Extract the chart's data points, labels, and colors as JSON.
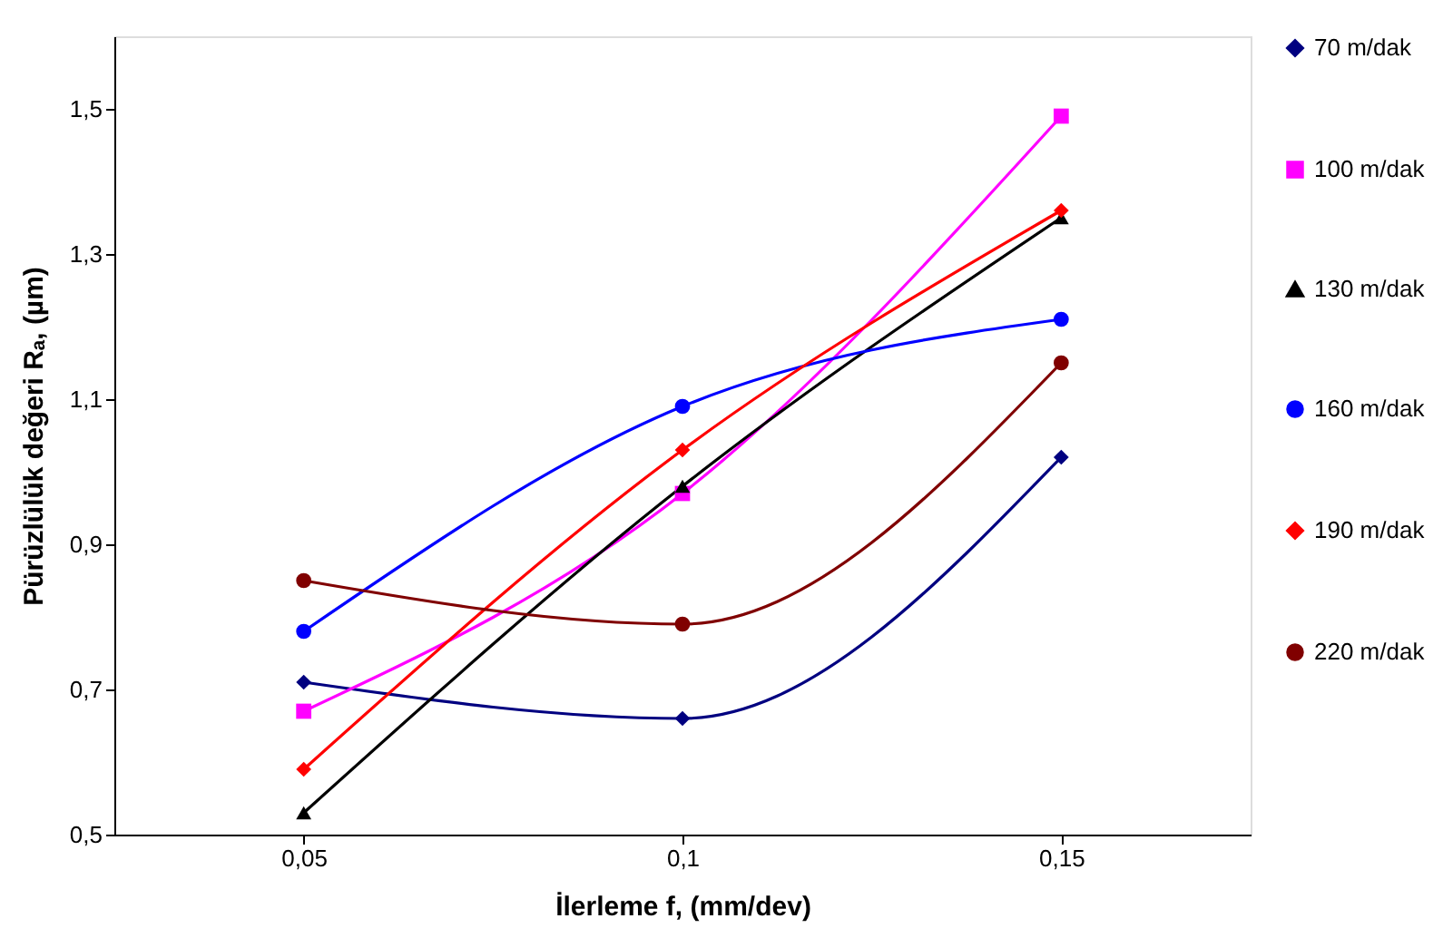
{
  "chart_data": {
    "type": "line",
    "xlabel": "İlerleme f, (mm/dev)",
    "ylabel": "Pürüzlülük değeri Rₐ, (µm)",
    "x": [
      0.05,
      0.1,
      0.15
    ],
    "series": [
      {
        "name": "70 m/dak",
        "color": "#000080",
        "marker": "diamond",
        "values": [
          0.71,
          0.66,
          1.02
        ]
      },
      {
        "name": "100 m/dak",
        "color": "#ff00ff",
        "marker": "square",
        "values": [
          0.67,
          0.97,
          1.49
        ]
      },
      {
        "name": "130 m/dak",
        "color": "#000000",
        "marker": "triangle",
        "values": [
          0.53,
          0.98,
          1.35
        ]
      },
      {
        "name": "160 m/dak",
        "color": "#0000ff",
        "marker": "circle",
        "values": [
          0.78,
          1.09,
          1.21
        ]
      },
      {
        "name": "190 m/dak",
        "color": "#ff0000",
        "marker": "diamond",
        "values": [
          0.59,
          1.03,
          1.36
        ]
      },
      {
        "name": "220 m/dak",
        "color": "#800000",
        "marker": "circle",
        "values": [
          0.85,
          0.79,
          1.15
        ]
      }
    ],
    "xlim": [
      0.025,
      0.175
    ],
    "xticks": [
      {
        "value": 0.05,
        "label": "0,05"
      },
      {
        "value": 0.1,
        "label": "0,1"
      },
      {
        "value": 0.15,
        "label": "0,15"
      }
    ],
    "ylim": [
      0.5,
      1.6
    ],
    "yticks": [
      {
        "value": 0.5,
        "label": "0,5"
      },
      {
        "value": 0.7,
        "label": "0,7"
      },
      {
        "value": 0.9,
        "label": "0,9"
      },
      {
        "value": 1.1,
        "label": "1,1"
      },
      {
        "value": 1.3,
        "label": "1,3"
      },
      {
        "value": 1.5,
        "label": "1,5"
      }
    ],
    "grid": false,
    "legend": "right",
    "line_style": "solid"
  }
}
